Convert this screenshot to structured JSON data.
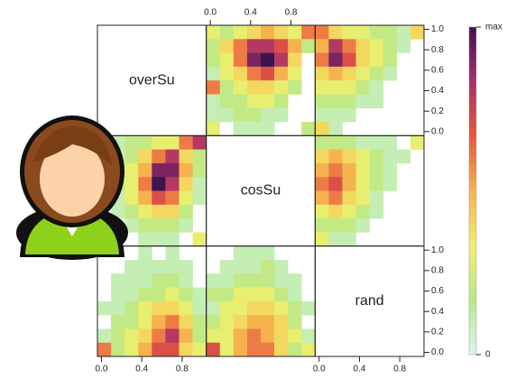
{
  "chart_data": {
    "type": "heatmap-matrix",
    "variables": [
      "overSu",
      "cosSu",
      "rand"
    ],
    "lim": [
      -0.04,
      1.04
    ],
    "xticks": [
      {
        "value": 0,
        "label": "0.0"
      },
      {
        "value": 0.4,
        "label": "0.4"
      },
      {
        "value": 0.8,
        "label": "0.8"
      }
    ],
    "yticks": [
      {
        "value": 0,
        "label": "0.0"
      },
      {
        "value": 0.2,
        "label": "0.2"
      },
      {
        "value": 0.4,
        "label": "0.4"
      },
      {
        "value": 0.6,
        "label": "0.6"
      },
      {
        "value": 0.8,
        "label": "0.8"
      },
      {
        "value": 1,
        "label": "1.0"
      }
    ],
    "colors": [
      "#d8f6f3",
      "#b7e88a",
      "#f3ef6a",
      "#f6b24f",
      "#e8573f",
      "#a6316b",
      "#3d1450"
    ],
    "colorbar_ticks": [
      0,
      {
        "value": 1,
        "label": "max"
      }
    ],
    "grids": [
      [
        null,
        [
          [
            0.3,
            0.2,
            0.3,
            0.4,
            0.5,
            0.4,
            0.3,
            0.6
          ],
          [
            0.2,
            0.4,
            0.6,
            0.8,
            0.8,
            0.7,
            0.5,
            0.2
          ],
          [
            0.2,
            0.3,
            0.6,
            0.9,
            1.0,
            0.8,
            0.4,
            null
          ],
          [
            0.1,
            0.3,
            0.4,
            0.6,
            0.7,
            0.5,
            0.3,
            null
          ],
          [
            0.6,
            0.2,
            0.3,
            0.4,
            0.4,
            0.3,
            0.2,
            null
          ],
          [
            0.1,
            0.2,
            0.2,
            0.3,
            0.3,
            0.2,
            null,
            null
          ],
          [
            0.1,
            0.1,
            0.2,
            0.2,
            0.1,
            0.1,
            null,
            null
          ],
          [
            0.3,
            null,
            0.1,
            0.1,
            0.1,
            null,
            null,
            0.2
          ]
        ],
        [
          [
            0.6,
            0.4,
            0.3,
            0.3,
            0.2,
            0.2,
            0.1,
            0.4
          ],
          [
            0.5,
            0.8,
            0.6,
            0.4,
            0.3,
            0.2,
            0.1,
            null
          ],
          [
            0.6,
            0.9,
            0.7,
            0.4,
            0.3,
            0.2,
            null,
            null
          ],
          [
            0.4,
            0.5,
            0.4,
            0.3,
            0.2,
            0.1,
            null,
            null
          ],
          [
            0.3,
            0.3,
            0.3,
            0.2,
            0.1,
            null,
            null,
            null
          ],
          [
            0.2,
            0.2,
            0.2,
            0.1,
            0.1,
            null,
            null,
            null
          ],
          [
            0.1,
            0.1,
            0.1,
            null,
            null,
            null,
            null,
            null
          ],
          [
            0.4,
            0.1,
            null,
            null,
            null,
            null,
            null,
            null
          ]
        ]
      ],
      [
        [
          [
            null,
            0.1,
            0.2,
            0.2,
            0.3,
            0.3,
            0.6,
            0.8
          ],
          [
            null,
            0.1,
            0.2,
            0.4,
            0.6,
            0.8,
            0.4,
            0.2
          ],
          [
            null,
            0.2,
            0.3,
            0.5,
            0.9,
            0.9,
            0.5,
            0.2
          ],
          [
            0.1,
            0.2,
            0.3,
            0.6,
            1.0,
            0.8,
            0.4,
            0.1
          ],
          [
            null,
            0.1,
            0.3,
            0.5,
            0.7,
            0.6,
            0.3,
            0.1
          ],
          [
            null,
            0.1,
            0.2,
            0.3,
            0.4,
            0.4,
            0.2,
            null
          ],
          [
            null,
            null,
            0.1,
            0.2,
            0.2,
            0.2,
            0.1,
            null
          ],
          [
            null,
            null,
            null,
            0.1,
            0.1,
            0.1,
            null,
            0.3
          ]
        ],
        null,
        [
          [
            0.2,
            0.2,
            0.2,
            0.1,
            0.1,
            0.1,
            null,
            0.3
          ],
          [
            0.4,
            0.5,
            0.4,
            0.3,
            0.2,
            0.1,
            0.1,
            null
          ],
          [
            0.5,
            0.6,
            0.5,
            0.3,
            0.2,
            0.1,
            null,
            null
          ],
          [
            0.6,
            0.7,
            0.5,
            0.3,
            0.2,
            0.1,
            null,
            null
          ],
          [
            0.5,
            0.6,
            0.4,
            0.3,
            0.1,
            null,
            null,
            null
          ],
          [
            0.3,
            0.4,
            0.3,
            0.2,
            0.1,
            null,
            null,
            null
          ],
          [
            0.2,
            0.2,
            0.2,
            0.1,
            null,
            null,
            null,
            null
          ],
          [
            0.3,
            0.1,
            0.1,
            null,
            null,
            null,
            null,
            null
          ]
        ]
      ],
      [
        [
          [
            null,
            null,
            null,
            0.1,
            null,
            0.1,
            null,
            null
          ],
          [
            null,
            null,
            0.1,
            0.1,
            0.1,
            0.1,
            0.1,
            null
          ],
          [
            null,
            0.1,
            0.1,
            0.1,
            0.2,
            0.2,
            0.1,
            null
          ],
          [
            null,
            0.1,
            0.1,
            0.2,
            0.2,
            0.3,
            0.2,
            0.1
          ],
          [
            0.1,
            0.1,
            0.2,
            0.3,
            0.4,
            0.4,
            0.3,
            0.1
          ],
          [
            null,
            0.2,
            0.2,
            0.3,
            0.5,
            0.6,
            0.4,
            0.2
          ],
          [
            0.1,
            0.2,
            0.3,
            0.4,
            0.6,
            0.8,
            0.5,
            0.2
          ],
          [
            0.6,
            0.2,
            0.3,
            0.5,
            0.7,
            0.7,
            0.4,
            0.3
          ]
        ],
        [
          [
            null,
            null,
            0.1,
            0.1,
            0.1,
            null,
            null,
            null
          ],
          [
            null,
            0.1,
            0.1,
            0.1,
            0.2,
            0.1,
            null,
            null
          ],
          [
            0.1,
            0.1,
            0.2,
            0.2,
            0.2,
            0.1,
            0.1,
            null
          ],
          [
            0.2,
            0.2,
            0.3,
            0.3,
            0.3,
            0.2,
            0.1,
            null
          ],
          [
            0.1,
            0.3,
            0.3,
            0.4,
            0.4,
            0.3,
            0.2,
            0.1
          ],
          [
            0.2,
            0.3,
            0.4,
            0.5,
            0.5,
            0.4,
            0.2,
            null
          ],
          [
            0.3,
            0.3,
            0.5,
            0.6,
            0.5,
            0.4,
            0.3,
            0.1
          ],
          [
            0.7,
            0.3,
            0.5,
            0.6,
            0.6,
            0.4,
            0.2,
            0.3
          ]
        ],
        null
      ]
    ]
  }
}
